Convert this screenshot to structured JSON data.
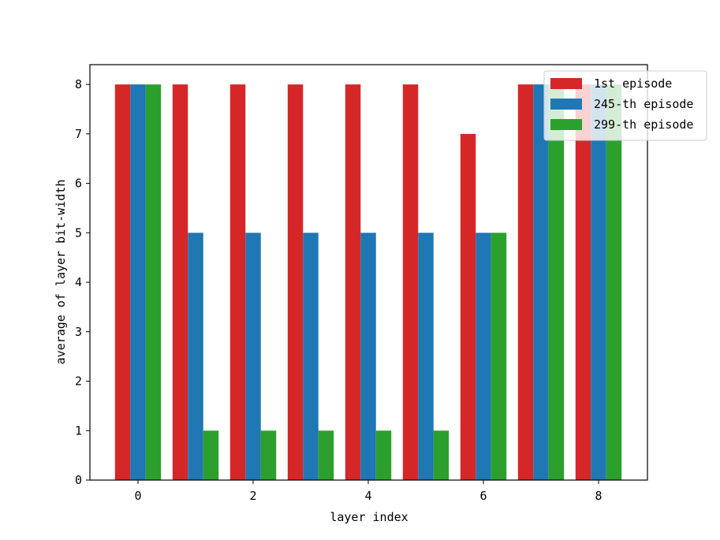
{
  "chart_data": {
    "type": "bar",
    "xlabel": "layer index",
    "ylabel": "average of layer bit-width",
    "categories": [
      0,
      1,
      2,
      3,
      4,
      5,
      6,
      7,
      8
    ],
    "x_ticks": [
      "0",
      "2",
      "4",
      "6",
      "8"
    ],
    "y_ticks": [
      "0",
      "1",
      "2",
      "3",
      "4",
      "5",
      "6",
      "7",
      "8"
    ],
    "ylim": [
      0,
      8.4
    ],
    "grid": false,
    "legend_position": "top-right",
    "series": [
      {
        "name": "1st episode",
        "color": "#d62728",
        "values": [
          8,
          8,
          8,
          8,
          8,
          8,
          7,
          8,
          8
        ]
      },
      {
        "name": "245-th episode",
        "color": "#1f77b4",
        "values": [
          8,
          5,
          5,
          5,
          5,
          5,
          5,
          8,
          8
        ]
      },
      {
        "name": "299-th episode",
        "color": "#2ca02c",
        "values": [
          8,
          1,
          1,
          1,
          1,
          1,
          5,
          8,
          8
        ]
      }
    ]
  }
}
